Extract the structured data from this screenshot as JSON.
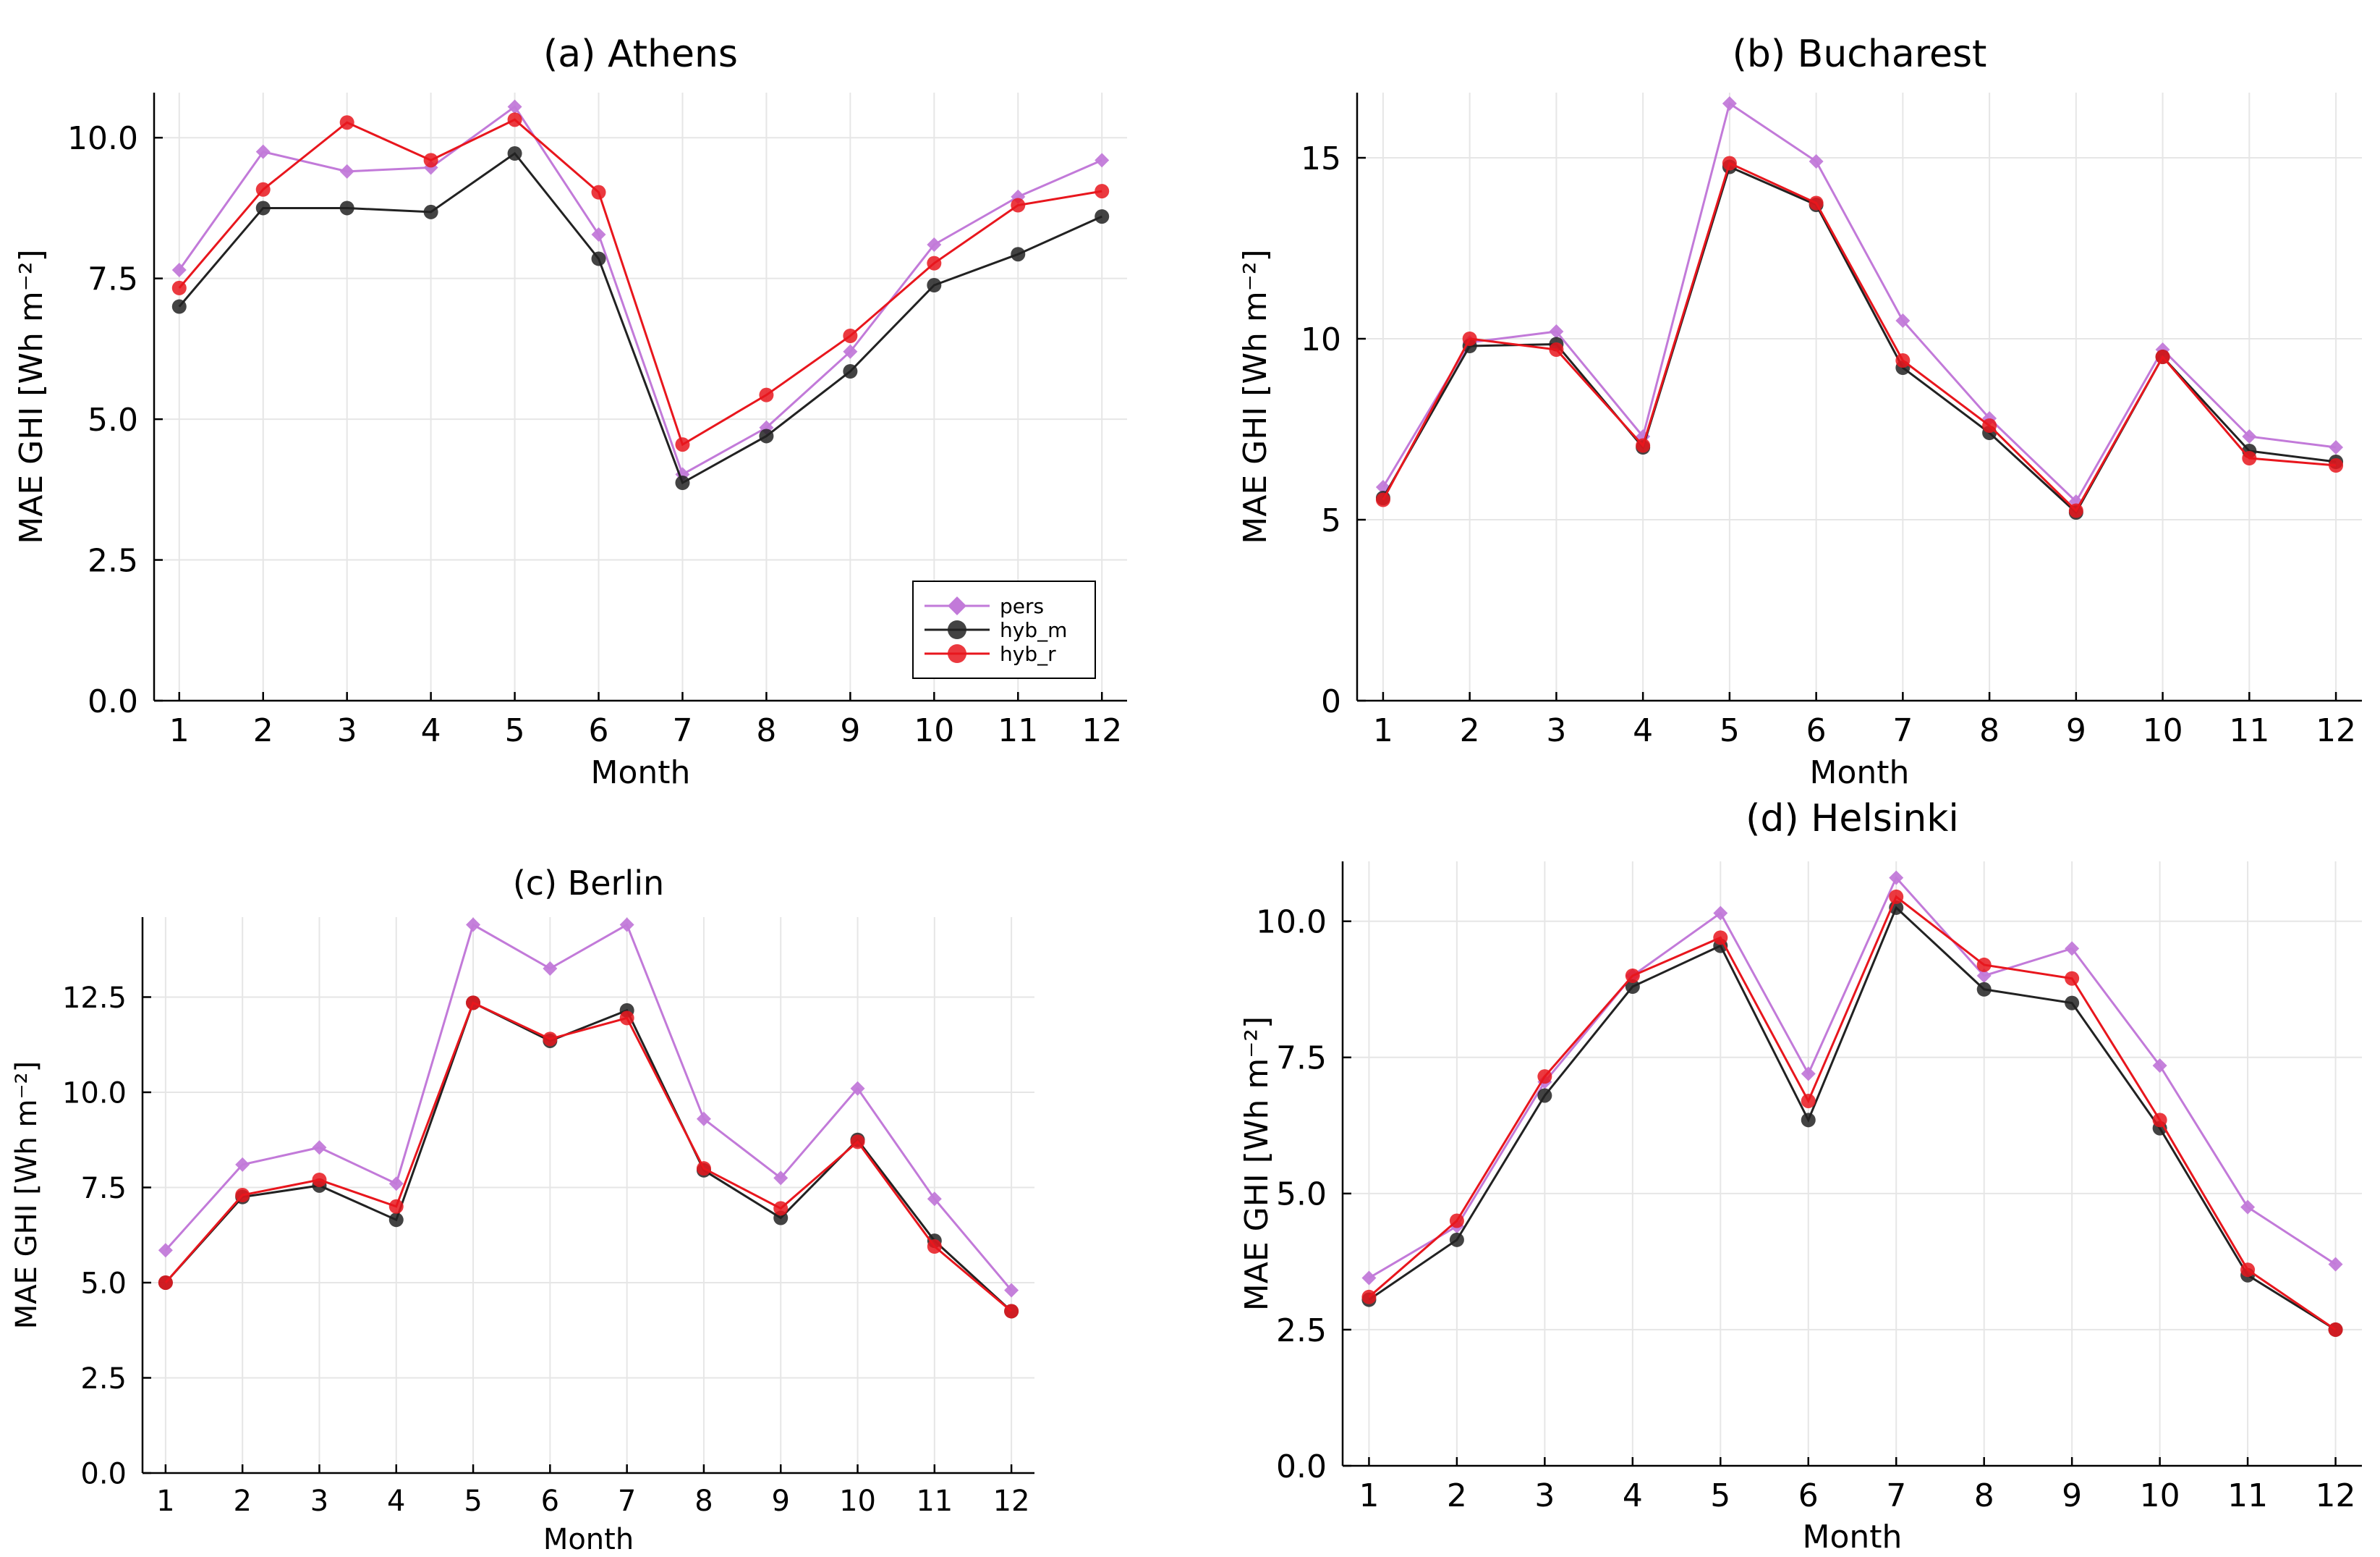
{
  "colors": {
    "pers": "#c27ad9",
    "hyb_m": "#222222",
    "hyb_r": "#e8161d"
  },
  "chart_data": [
    {
      "type": "line",
      "title": "(a) Athens",
      "xlabel": "Month",
      "ylabel": "MAE GHI [Wh m⁻²]",
      "x": [
        1,
        2,
        3,
        4,
        5,
        6,
        7,
        8,
        9,
        10,
        11,
        12
      ],
      "xticks": [
        "1",
        "2",
        "3",
        "4",
        "5",
        "6",
        "7",
        "8",
        "9",
        "10",
        "11",
        "12"
      ],
      "yticks": [
        "0.0",
        "2.5",
        "5.0",
        "7.5",
        "10.0"
      ],
      "ylim": [
        0,
        10.8
      ],
      "grid": true,
      "legend": "bottom-right",
      "series": [
        {
          "name": "pers",
          "values": [
            7.65,
            9.75,
            9.4,
            9.47,
            10.55,
            8.28,
            4.02,
            4.85,
            6.2,
            8.1,
            8.95,
            9.6
          ]
        },
        {
          "name": "hyb_m",
          "values": [
            7.0,
            8.75,
            8.75,
            8.68,
            9.72,
            7.85,
            3.87,
            4.7,
            5.85,
            7.38,
            7.93,
            8.6
          ]
        },
        {
          "name": "hyb_r",
          "values": [
            7.33,
            9.08,
            10.27,
            9.6,
            10.32,
            9.03,
            4.55,
            5.43,
            6.48,
            7.77,
            8.8,
            9.05
          ]
        }
      ]
    },
    {
      "type": "line",
      "title": "(b) Bucharest",
      "xlabel": "Month",
      "ylabel": "MAE GHI [Wh m⁻²]",
      "x": [
        1,
        2,
        3,
        4,
        5,
        6,
        7,
        8,
        9,
        10,
        11,
        12
      ],
      "xticks": [
        "1",
        "2",
        "3",
        "4",
        "5",
        "6",
        "7",
        "8",
        "9",
        "10",
        "11",
        "12"
      ],
      "yticks": [
        "0",
        "5",
        "10",
        "15"
      ],
      "ylim": [
        0,
        16.8
      ],
      "grid": true,
      "series": [
        {
          "name": "pers",
          "values": [
            5.9,
            9.9,
            10.2,
            7.3,
            16.5,
            14.9,
            10.5,
            7.8,
            5.5,
            9.7,
            7.3,
            7.0
          ]
        },
        {
          "name": "hyb_m",
          "values": [
            5.6,
            9.8,
            9.85,
            7.0,
            14.75,
            13.7,
            9.2,
            7.4,
            5.2,
            9.5,
            6.9,
            6.6
          ]
        },
        {
          "name": "hyb_r",
          "values": [
            5.55,
            10.0,
            9.7,
            7.05,
            14.85,
            13.75,
            9.4,
            7.6,
            5.25,
            9.5,
            6.7,
            6.5
          ]
        }
      ]
    },
    {
      "type": "line",
      "title": "(c) Berlin",
      "xlabel": "Month",
      "ylabel": "MAE GHI [Wh m⁻²]",
      "x": [
        1,
        2,
        3,
        4,
        5,
        6,
        7,
        8,
        9,
        10,
        11,
        12
      ],
      "xticks": [
        "1",
        "2",
        "3",
        "4",
        "5",
        "6",
        "7",
        "8",
        "9",
        "10",
        "11",
        "12"
      ],
      "yticks": [
        "0.0",
        "2.5",
        "5.0",
        "7.5",
        "10.0",
        "12.5"
      ],
      "ylim": [
        0,
        14.6
      ],
      "grid": true,
      "series": [
        {
          "name": "pers",
          "values": [
            5.85,
            8.1,
            8.55,
            7.6,
            14.4,
            13.25,
            14.4,
            9.3,
            7.75,
            10.1,
            7.2,
            4.8
          ]
        },
        {
          "name": "hyb_m",
          "values": [
            5.0,
            7.25,
            7.55,
            6.65,
            12.35,
            11.35,
            12.15,
            7.95,
            6.7,
            8.75,
            6.1,
            4.25
          ]
        },
        {
          "name": "hyb_r",
          "values": [
            5.0,
            7.3,
            7.7,
            7.0,
            12.35,
            11.4,
            11.95,
            8.0,
            6.95,
            8.7,
            5.95,
            4.25
          ]
        }
      ]
    },
    {
      "type": "line",
      "title": "(d) Helsinki",
      "xlabel": "Month",
      "ylabel": "MAE GHI [Wh m⁻²]",
      "x": [
        1,
        2,
        3,
        4,
        5,
        6,
        7,
        8,
        9,
        10,
        11,
        12
      ],
      "xticks": [
        "1",
        "2",
        "3",
        "4",
        "5",
        "6",
        "7",
        "8",
        "9",
        "10",
        "11",
        "12"
      ],
      "yticks": [
        "0.0",
        "2.5",
        "5.0",
        "7.5",
        "10.0"
      ],
      "ylim": [
        0,
        11.1
      ],
      "grid": true,
      "series": [
        {
          "name": "pers",
          "values": [
            3.45,
            4.4,
            7.05,
            9.0,
            10.15,
            7.2,
            10.8,
            9.0,
            9.5,
            7.35,
            4.75,
            3.7
          ]
        },
        {
          "name": "hyb_m",
          "values": [
            3.05,
            4.15,
            6.8,
            8.8,
            9.55,
            6.35,
            10.25,
            8.75,
            8.5,
            6.2,
            3.5,
            2.5
          ]
        },
        {
          "name": "hyb_r",
          "values": [
            3.1,
            4.5,
            7.15,
            9.0,
            9.7,
            6.7,
            10.45,
            9.2,
            8.95,
            6.35,
            3.6,
            2.5
          ]
        }
      ]
    }
  ]
}
